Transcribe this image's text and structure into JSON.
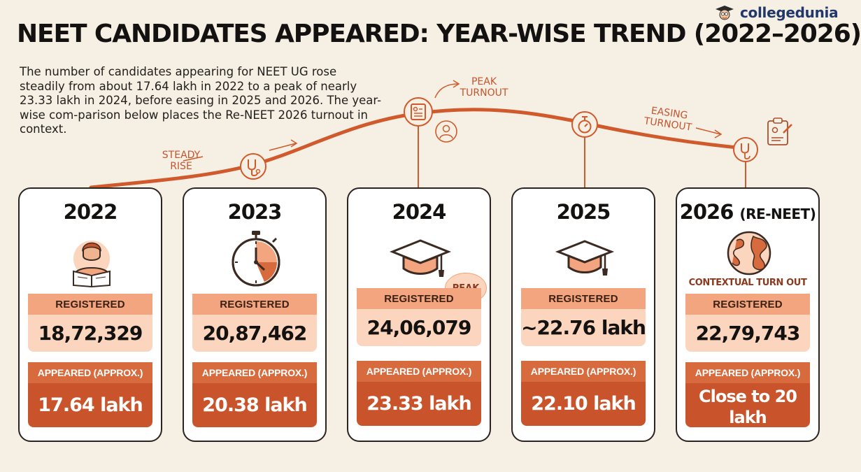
{
  "brand": {
    "name": "collegedunia"
  },
  "title": "NEET CANDIDATES APPEARED: YEAR-WISE TREND (2022–2026)",
  "intro": "The number of candidates appearing for NEET UG rose steadily from about 17.64 lakh in 2022 to a peak of nearly 23.33 lakh in 2024, before easing in 2025 and 2026. The year-wise com-parison below places the Re-NEET 2026 turnout in context.",
  "trend_notes": {
    "steady_rise": "STEADY RISE",
    "peak_turnout": "PEAK TURNOUT",
    "easing_turnout": "EASING TURNOUT"
  },
  "colors": {
    "accent": "#d05a2c",
    "light": "#fbd5bd",
    "label_light": "#f2a57e",
    "dark": "#c9532a",
    "background": "#f6efe4"
  },
  "cards": [
    {
      "year": "2022",
      "tag": "",
      "icon": "student-reading-icon",
      "registered_label": "REGISTERED",
      "registered": "18,72,329",
      "appeared_label": "APPEARED (APPROX.)",
      "appeared": "17.64 lakh"
    },
    {
      "year": "2023",
      "tag": "",
      "icon": "stopwatch-icon",
      "registered_label": "REGISTERED",
      "registered": "20,87,462",
      "appeared_label": "APPEARED (APPROX.)",
      "appeared": "20.38 lakh"
    },
    {
      "year": "2024",
      "tag": "",
      "icon": "graduation-cap-icon",
      "badge": "PEAK",
      "registered_label": "REGISTERED",
      "registered": "24,06,079",
      "appeared_label": "APPEARED (APPROX.)",
      "appeared": "23.33 lakh"
    },
    {
      "year": "2025",
      "tag": "",
      "icon": "graduation-cap-icon",
      "registered_label": "REGISTERED",
      "registered": "~22.76 lakh",
      "appeared_label": "APPEARED (APPROX.)",
      "appeared": "22.10 lakh"
    },
    {
      "year": "2026",
      "tag": "(RE-NEET)",
      "icon": "globe-icon",
      "context": "CONTEXTUAL TURN OUT",
      "registered_label": "REGISTERED",
      "registered": "22,79,743",
      "appeared_label": "APPEARED (APPROX.)",
      "appeared": "Close to 20 lakh"
    }
  ]
}
